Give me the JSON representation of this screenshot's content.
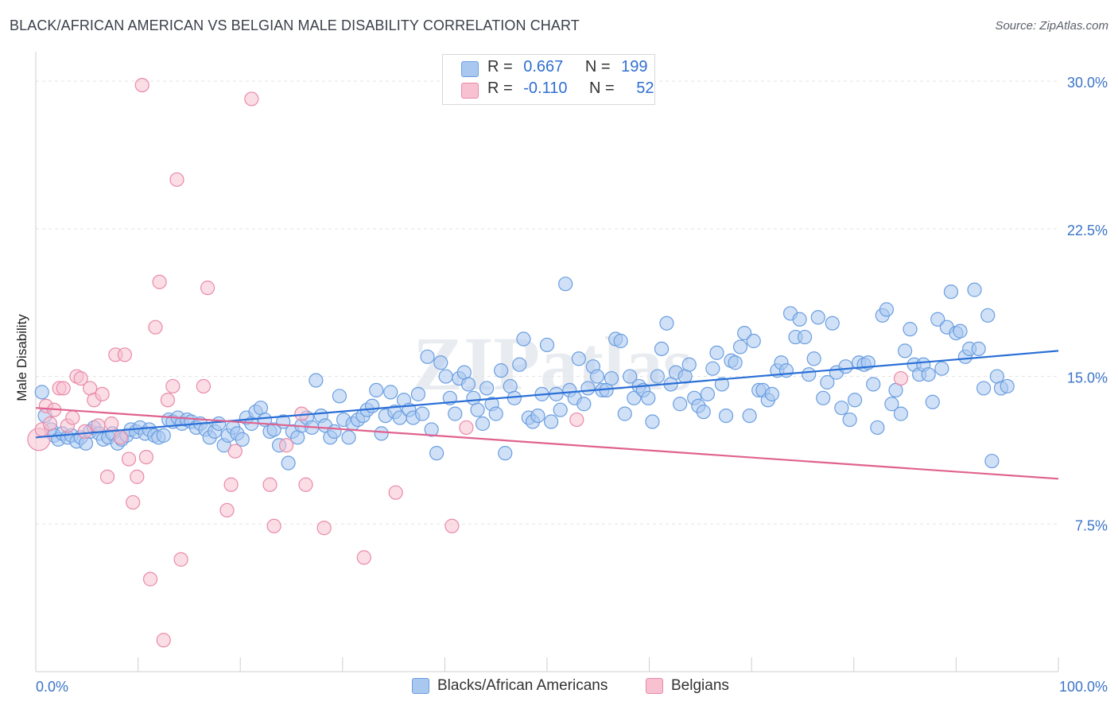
{
  "title": "BLACK/AFRICAN AMERICAN VS BELGIAN MALE DISABILITY CORRELATION CHART",
  "source": "Source: ZipAtlas.com",
  "watermark": "ZIPatlas",
  "legend_top": {
    "rows": [
      {
        "r_label": "R =",
        "r_value": "0.667",
        "n_label": "N =",
        "n_value": "199"
      },
      {
        "r_label": "R =",
        "r_value": "-0.110",
        "n_label": "N =",
        "n_value": "52"
      }
    ]
  },
  "legend_bottom": [
    "Blacks/African Americans",
    "Belgians"
  ],
  "colors": {
    "blue_fill": "#a9c8f0",
    "blue_stroke": "#6a9ee0",
    "blue_line": "#2a6fd6",
    "pink_fill": "#f7c1d2",
    "pink_stroke": "#e98aa8",
    "pink_line": "#e0628f",
    "axis_text": "#3b74c8",
    "grid": "#e3e3e3"
  },
  "chart_data": {
    "type": "scatter",
    "title": "BLACK/AFRICAN AMERICAN VS BELGIAN MALE DISABILITY CORRELATION CHART",
    "xlabel": "",
    "ylabel": "Male Disability",
    "xlim": [
      0,
      100
    ],
    "ylim": [
      0,
      31.5
    ],
    "x_tick_labels": [
      "0.0%",
      "100.0%"
    ],
    "y_ticks": [
      7.5,
      15.0,
      22.5,
      30.0
    ],
    "y_tick_labels": [
      "7.5%",
      "15.0%",
      "22.5%",
      "30.0%"
    ],
    "series": [
      {
        "name": "Blacks/African Americans",
        "r": 0.667,
        "n": 199,
        "trend": {
          "x": [
            0,
            100
          ],
          "y": [
            11.9,
            16.3
          ]
        },
        "points": [
          [
            0.6,
            14.2
          ],
          [
            0.9,
            13.0
          ],
          [
            1.5,
            12.3
          ],
          [
            1.8,
            12.0
          ],
          [
            2.2,
            11.8
          ],
          [
            2.6,
            12.1
          ],
          [
            3.1,
            11.9
          ],
          [
            3.5,
            12.0
          ],
          [
            4.0,
            11.7
          ],
          [
            4.4,
            11.9
          ],
          [
            4.9,
            11.6
          ],
          [
            5.3,
            12.2
          ],
          [
            5.7,
            12.4
          ],
          [
            6.2,
            12.1
          ],
          [
            6.6,
            11.8
          ],
          [
            7.1,
            11.9
          ],
          [
            7.5,
            12.1
          ],
          [
            8.0,
            11.6
          ],
          [
            8.4,
            11.8
          ],
          [
            8.9,
            12.0
          ],
          [
            9.3,
            12.3
          ],
          [
            9.8,
            12.2
          ],
          [
            10.2,
            12.4
          ],
          [
            10.7,
            12.1
          ],
          [
            11.1,
            12.3
          ],
          [
            11.6,
            12.0
          ],
          [
            12.0,
            11.9
          ],
          [
            12.5,
            12.0
          ],
          [
            13.0,
            12.8
          ],
          [
            13.4,
            12.7
          ],
          [
            13.9,
            12.9
          ],
          [
            14.3,
            12.6
          ],
          [
            14.8,
            12.8
          ],
          [
            15.2,
            12.7
          ],
          [
            15.7,
            12.4
          ],
          [
            16.1,
            12.6
          ],
          [
            16.6,
            12.3
          ],
          [
            17.0,
            11.9
          ],
          [
            17.5,
            12.2
          ],
          [
            17.9,
            12.6
          ],
          [
            18.4,
            11.5
          ],
          [
            18.8,
            12.0
          ],
          [
            19.3,
            12.4
          ],
          [
            19.7,
            12.1
          ],
          [
            20.2,
            11.8
          ],
          [
            20.6,
            12.9
          ],
          [
            21.1,
            12.6
          ],
          [
            21.5,
            13.2
          ],
          [
            22.0,
            13.4
          ],
          [
            22.4,
            12.8
          ],
          [
            22.9,
            12.2
          ],
          [
            23.3,
            12.3
          ],
          [
            23.8,
            11.5
          ],
          [
            24.2,
            12.7
          ],
          [
            24.7,
            10.6
          ],
          [
            25.1,
            12.2
          ],
          [
            25.6,
            11.9
          ],
          [
            26.0,
            12.5
          ],
          [
            26.5,
            12.9
          ],
          [
            27.0,
            12.4
          ],
          [
            27.4,
            14.8
          ],
          [
            27.9,
            13.0
          ],
          [
            28.3,
            12.5
          ],
          [
            28.8,
            11.9
          ],
          [
            29.2,
            12.2
          ],
          [
            29.7,
            14.0
          ],
          [
            30.1,
            12.8
          ],
          [
            30.6,
            11.9
          ],
          [
            31.0,
            12.6
          ],
          [
            31.5,
            12.8
          ],
          [
            32.0,
            13.0
          ],
          [
            32.4,
            13.3
          ],
          [
            32.9,
            13.5
          ],
          [
            33.3,
            14.3
          ],
          [
            33.8,
            12.1
          ],
          [
            34.2,
            13.0
          ],
          [
            34.7,
            14.2
          ],
          [
            35.1,
            13.2
          ],
          [
            35.6,
            12.9
          ],
          [
            36.0,
            13.8
          ],
          [
            36.5,
            13.3
          ],
          [
            36.9,
            12.9
          ],
          [
            37.4,
            14.1
          ],
          [
            37.8,
            13.1
          ],
          [
            38.3,
            16.0
          ],
          [
            38.7,
            12.3
          ],
          [
            39.2,
            11.1
          ],
          [
            39.6,
            15.7
          ],
          [
            40.1,
            15.0
          ],
          [
            40.5,
            13.9
          ],
          [
            41.0,
            13.1
          ],
          [
            41.4,
            14.9
          ],
          [
            41.9,
            15.2
          ],
          [
            42.3,
            14.6
          ],
          [
            42.8,
            13.9
          ],
          [
            43.2,
            13.3
          ],
          [
            43.7,
            12.6
          ],
          [
            44.1,
            14.4
          ],
          [
            44.6,
            13.6
          ],
          [
            45.0,
            13.1
          ],
          [
            45.5,
            15.3
          ],
          [
            45.9,
            11.1
          ],
          [
            46.4,
            14.5
          ],
          [
            46.8,
            13.9
          ],
          [
            47.3,
            15.6
          ],
          [
            47.7,
            16.9
          ],
          [
            48.2,
            12.9
          ],
          [
            48.6,
            12.7
          ],
          [
            49.1,
            13.0
          ],
          [
            49.5,
            14.1
          ],
          [
            50.0,
            16.6
          ],
          [
            50.4,
            12.7
          ],
          [
            50.9,
            14.1
          ],
          [
            51.3,
            13.3
          ],
          [
            51.8,
            19.7
          ],
          [
            52.2,
            14.3
          ],
          [
            52.7,
            13.9
          ],
          [
            53.1,
            15.9
          ],
          [
            53.6,
            13.6
          ],
          [
            54.0,
            14.4
          ],
          [
            54.5,
            15.5
          ],
          [
            54.9,
            15.0
          ],
          [
            55.4,
            14.3
          ],
          [
            55.8,
            14.3
          ],
          [
            56.3,
            14.9
          ],
          [
            56.7,
            16.9
          ],
          [
            57.2,
            16.8
          ],
          [
            57.6,
            13.1
          ],
          [
            58.1,
            15.0
          ],
          [
            58.5,
            13.9
          ],
          [
            59.0,
            14.5
          ],
          [
            59.4,
            14.3
          ],
          [
            59.9,
            13.9
          ],
          [
            60.3,
            12.7
          ],
          [
            60.8,
            15.0
          ],
          [
            61.2,
            16.4
          ],
          [
            61.7,
            17.7
          ],
          [
            62.1,
            14.6
          ],
          [
            62.6,
            15.2
          ],
          [
            63.0,
            13.6
          ],
          [
            63.5,
            15.0
          ],
          [
            63.9,
            15.6
          ],
          [
            64.4,
            13.9
          ],
          [
            64.8,
            13.5
          ],
          [
            65.3,
            13.2
          ],
          [
            65.7,
            14.1
          ],
          [
            66.2,
            15.4
          ],
          [
            66.6,
            16.2
          ],
          [
            67.1,
            14.6
          ],
          [
            67.5,
            13.0
          ],
          [
            68.0,
            15.8
          ],
          [
            68.4,
            15.7
          ],
          [
            68.9,
            16.5
          ],
          [
            69.3,
            17.2
          ],
          [
            69.8,
            13.0
          ],
          [
            70.2,
            16.8
          ],
          [
            70.7,
            14.3
          ],
          [
            71.1,
            14.3
          ],
          [
            71.6,
            13.8
          ],
          [
            72.0,
            14.1
          ],
          [
            72.5,
            15.3
          ],
          [
            72.9,
            15.7
          ],
          [
            73.4,
            15.3
          ],
          [
            73.8,
            18.2
          ],
          [
            74.3,
            17.0
          ],
          [
            74.7,
            17.9
          ],
          [
            75.2,
            17.0
          ],
          [
            75.6,
            15.1
          ],
          [
            76.1,
            15.9
          ],
          [
            76.5,
            18.0
          ],
          [
            77.0,
            13.9
          ],
          [
            77.4,
            14.7
          ],
          [
            77.9,
            17.7
          ],
          [
            78.3,
            15.2
          ],
          [
            78.8,
            13.4
          ],
          [
            79.2,
            15.5
          ],
          [
            79.6,
            12.8
          ],
          [
            80.1,
            13.8
          ],
          [
            80.5,
            15.7
          ],
          [
            81.0,
            15.6
          ],
          [
            81.4,
            15.7
          ],
          [
            81.9,
            14.6
          ],
          [
            82.3,
            12.4
          ],
          [
            82.8,
            18.1
          ],
          [
            83.2,
            18.4
          ],
          [
            83.7,
            13.6
          ],
          [
            84.1,
            14.3
          ],
          [
            84.6,
            13.1
          ],
          [
            85.0,
            16.3
          ],
          [
            85.5,
            17.4
          ],
          [
            85.9,
            15.6
          ],
          [
            86.4,
            15.1
          ],
          [
            86.8,
            15.6
          ],
          [
            87.3,
            15.1
          ],
          [
            87.7,
            13.7
          ],
          [
            88.2,
            17.9
          ],
          [
            88.6,
            15.4
          ],
          [
            89.1,
            17.5
          ],
          [
            89.5,
            19.3
          ],
          [
            90.0,
            17.2
          ],
          [
            90.4,
            17.3
          ],
          [
            90.9,
            16.0
          ],
          [
            91.3,
            16.4
          ],
          [
            91.8,
            19.4
          ],
          [
            92.2,
            16.4
          ],
          [
            92.7,
            14.4
          ],
          [
            93.1,
            18.1
          ],
          [
            93.5,
            10.7
          ],
          [
            94.0,
            15.0
          ],
          [
            94.4,
            14.4
          ],
          [
            95.0,
            14.5
          ]
        ]
      },
      {
        "name": "Belgians",
        "r": -0.11,
        "n": 52,
        "trend": {
          "x": [
            0,
            100
          ],
          "y": [
            13.4,
            9.8
          ]
        },
        "points": [
          [
            0.3,
            11.8
          ],
          [
            0.6,
            12.3
          ],
          [
            1.0,
            13.5
          ],
          [
            1.4,
            12.6
          ],
          [
            1.8,
            13.3
          ],
          [
            2.3,
            14.4
          ],
          [
            2.7,
            14.4
          ],
          [
            3.1,
            12.5
          ],
          [
            3.6,
            12.9
          ],
          [
            4.0,
            15.0
          ],
          [
            4.4,
            14.9
          ],
          [
            4.8,
            12.2
          ],
          [
            5.3,
            14.4
          ],
          [
            5.7,
            13.8
          ],
          [
            6.1,
            12.5
          ],
          [
            6.5,
            14.1
          ],
          [
            7.0,
            9.9
          ],
          [
            7.4,
            12.6
          ],
          [
            7.8,
            16.1
          ],
          [
            8.3,
            11.9
          ],
          [
            8.7,
            16.1
          ],
          [
            9.1,
            10.8
          ],
          [
            9.5,
            8.6
          ],
          [
            9.9,
            9.9
          ],
          [
            10.4,
            29.8
          ],
          [
            10.8,
            10.9
          ],
          [
            11.2,
            4.7
          ],
          [
            11.7,
            17.5
          ],
          [
            12.1,
            19.8
          ],
          [
            12.5,
            1.6
          ],
          [
            12.9,
            13.8
          ],
          [
            13.4,
            14.5
          ],
          [
            13.8,
            25.0
          ],
          [
            14.2,
            5.7
          ],
          [
            16.4,
            14.5
          ],
          [
            16.8,
            19.5
          ],
          [
            18.7,
            8.2
          ],
          [
            19.1,
            9.5
          ],
          [
            19.5,
            11.2
          ],
          [
            21.1,
            29.1
          ],
          [
            22.9,
            9.5
          ],
          [
            23.3,
            7.4
          ],
          [
            24.5,
            11.5
          ],
          [
            26.0,
            13.1
          ],
          [
            26.4,
            9.5
          ],
          [
            28.2,
            7.3
          ],
          [
            32.1,
            5.8
          ],
          [
            35.2,
            9.1
          ],
          [
            40.7,
            7.4
          ],
          [
            42.1,
            12.4
          ],
          [
            52.9,
            12.8
          ],
          [
            84.6,
            14.9
          ]
        ]
      }
    ]
  }
}
